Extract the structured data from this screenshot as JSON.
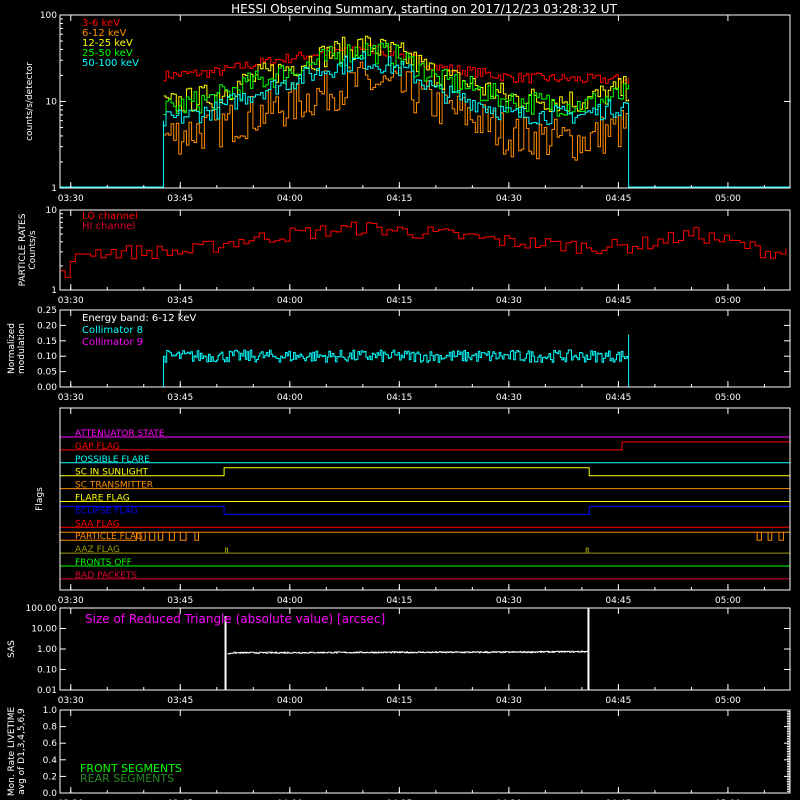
{
  "title": "HESSI Observing Summary, starting on 2017/12/23 03:28:32 UT",
  "colors": {
    "background": "#000000",
    "axes": "#ffffff",
    "red": "#ff0000",
    "orange": "#ff8c00",
    "yellow": "#ffff00",
    "green": "#00ff00",
    "cyan": "#00ffff",
    "magenta": "#ff00ff",
    "blue": "#0000ff",
    "olive": "#999900",
    "crimson": "#dd0033"
  },
  "time_axis": {
    "ticks": [
      "03:30",
      "03:45",
      "04:00",
      "04:15",
      "04:30",
      "04:45",
      "05:00"
    ],
    "tick_minutes": [
      0,
      15,
      30,
      45,
      60,
      75,
      90
    ],
    "range_minutes": [
      -1.47,
      98.5
    ]
  },
  "chart_data": [
    {
      "type": "line",
      "name": "count-rates",
      "ylabel": "counts/s/detector",
      "yscale": "log",
      "ylim": [
        1,
        100
      ],
      "yticks": [
        "1",
        "10",
        "100"
      ],
      "observation_minutes": [
        12.7,
        76.4
      ],
      "series": [
        {
          "name": "3-6 keV",
          "color": "#ff0000",
          "x": [
            13,
            20,
            30,
            40,
            45,
            50,
            60,
            70,
            76
          ],
          "y": [
            20,
            22,
            32,
            42,
            35,
            25,
            19,
            18,
            18
          ]
        },
        {
          "name": "6-12 keV",
          "color": "#ff8c00",
          "x": [
            13,
            20,
            30,
            40,
            45,
            50,
            60,
            70,
            76
          ],
          "y": [
            4,
            5,
            9,
            17,
            14,
            9,
            4,
            3.5,
            5
          ]
        },
        {
          "name": "12-25 keV",
          "color": "#ffff00",
          "x": [
            13,
            20,
            30,
            40,
            45,
            50,
            60,
            70,
            76
          ],
          "y": [
            9,
            12,
            25,
            45,
            35,
            20,
            11,
            10,
            14
          ]
        },
        {
          "name": "25-50 keV",
          "color": "#00ff00",
          "x": [
            13,
            20,
            30,
            40,
            45,
            50,
            60,
            70,
            76
          ],
          "y": [
            8,
            11,
            22,
            40,
            32,
            18,
            10,
            9,
            12
          ]
        },
        {
          "name": "50-100 keV",
          "color": "#00ffff",
          "x": [
            13,
            20,
            30,
            40,
            45,
            50,
            60,
            70,
            76
          ],
          "y": [
            6,
            8,
            17,
            30,
            24,
            13,
            7,
            7,
            9
          ]
        }
      ]
    },
    {
      "type": "line",
      "name": "particle-rates",
      "ylabel": "PARTICLE RATES Counts/s",
      "yscale": "log",
      "ylim": [
        1,
        10
      ],
      "yticks": [
        "1",
        "10"
      ],
      "series": [
        {
          "name": "LO channel",
          "color": "#ff0000",
          "x": [
            -1.5,
            0,
            1.5,
            3,
            10,
            16,
            22,
            30,
            40,
            45,
            50,
            60,
            70,
            76,
            80,
            85,
            90,
            95,
            98.5
          ],
          "y": [
            1.5,
            2,
            3,
            3,
            3,
            3,
            4,
            5,
            6,
            5.5,
            5,
            4,
            3.5,
            3.5,
            4,
            5,
            4,
            3,
            3
          ]
        },
        {
          "name": "HI channel",
          "color": "#ff00ff",
          "x": [
            -1.5,
            98.5
          ],
          "y": [
            1,
            1
          ]
        }
      ]
    },
    {
      "type": "line",
      "name": "modulation",
      "ylabel": "Normalized modulation",
      "ylim": [
        0,
        0.25
      ],
      "yticks": [
        "0.00",
        "0.05",
        "0.10",
        "0.15",
        "0.20",
        "0.25"
      ],
      "annotation": "Energy band: 6-12 keV",
      "series": [
        {
          "name": "Collimator 8",
          "color": "#00ffff",
          "x": [
            12.7,
            76.4
          ],
          "y": [
            0.1,
            0.1
          ]
        },
        {
          "name": "Collimator 9",
          "color": "#ff00ff",
          "x": [
            -1.5,
            98.5
          ],
          "y": [
            0,
            0
          ]
        }
      ]
    },
    {
      "type": "line",
      "name": "flags",
      "ylabel": "Flags",
      "series": [
        {
          "name": "ATTENUATOR STATE",
          "color": "#ff00ff",
          "x": [
            -1.5,
            98.5
          ],
          "y": [
            0,
            0
          ]
        },
        {
          "name": "GAP FLAG",
          "color": "#ff0000",
          "x": [
            -1.5,
            75.5,
            75.5,
            98.5
          ],
          "y": [
            0,
            0,
            1,
            1
          ]
        },
        {
          "name": "POSSIBLE FLARE",
          "color": "#00ffff",
          "x": [
            -1.5,
            98.5
          ],
          "y": [
            0,
            0
          ]
        },
        {
          "name": "SC IN SUNLIGHT",
          "color": "#ffff00",
          "x": [
            -1.5,
            21,
            21,
            71,
            71,
            98.5
          ],
          "y": [
            0,
            0,
            1,
            1,
            0,
            0
          ]
        },
        {
          "name": "SC TRANSMITTER",
          "color": "#ff8c00",
          "x": [
            -1.5,
            98.5
          ],
          "y": [
            0,
            0
          ]
        },
        {
          "name": "FLARE FLAG",
          "color": "#ffff00",
          "x": [
            -1.5,
            98.5
          ],
          "y": [
            0,
            0
          ]
        },
        {
          "name": "ECLIPSE FLAG",
          "color": "#0000ff",
          "x": [
            -1.5,
            21,
            21,
            71,
            71,
            98.5
          ],
          "y": [
            1,
            1,
            0,
            0,
            1,
            1
          ]
        },
        {
          "name": "SAA FLAG",
          "color": "#ff0000",
          "x": [
            -1.5,
            98.5
          ],
          "y": [
            0,
            0
          ]
        },
        {
          "name": "PARTICLE FLAG",
          "color": "#ff8c00",
          "x": [
            -1.5,
            98.5
          ],
          "y": [
            1,
            1
          ]
        },
        {
          "name": "AAZ FLAG",
          "color": "#999900",
          "x": [
            -1.5,
            98.5
          ],
          "y": [
            0,
            0
          ]
        },
        {
          "name": "FRONTS OFF",
          "color": "#00ff00",
          "x": [
            -1.5,
            98.5
          ],
          "y": [
            0,
            0
          ]
        },
        {
          "name": "BAD PACKETS",
          "color": "#dd0033",
          "x": [
            -1.5,
            98.5
          ],
          "y": [
            0,
            0
          ]
        }
      ]
    },
    {
      "type": "line",
      "name": "sas",
      "ylabel": "SAS",
      "yscale": "log",
      "ylim": [
        0.01,
        100
      ],
      "yticks": [
        "0.01",
        "0.10",
        "1.00",
        "10.00",
        "100.00"
      ],
      "annotation": "Size of Reduced Triangle (absolute value) [arcsec]",
      "series": [
        {
          "name": "Size of Reduced Triangle",
          "color": "#ffffff",
          "x": [
            21,
            22,
            40,
            60,
            71
          ],
          "y": [
            0.5,
            0.65,
            0.68,
            0.7,
            0.75
          ]
        }
      ]
    },
    {
      "type": "line",
      "name": "livetime",
      "ylabel": "Mon. Rate LIVETIME avg of D1,3,4,5,6,9",
      "ylim": [
        0,
        1
      ],
      "yticks": [
        "0.0",
        "0.2",
        "0.4",
        "0.6",
        "0.8",
        "1.0"
      ],
      "series": [
        {
          "name": "FRONT SEGMENTS",
          "color": "#00ff00",
          "x": [],
          "y": []
        },
        {
          "name": "REAR SEGMENTS",
          "color": "#228b22",
          "x": [],
          "y": []
        }
      ]
    }
  ]
}
